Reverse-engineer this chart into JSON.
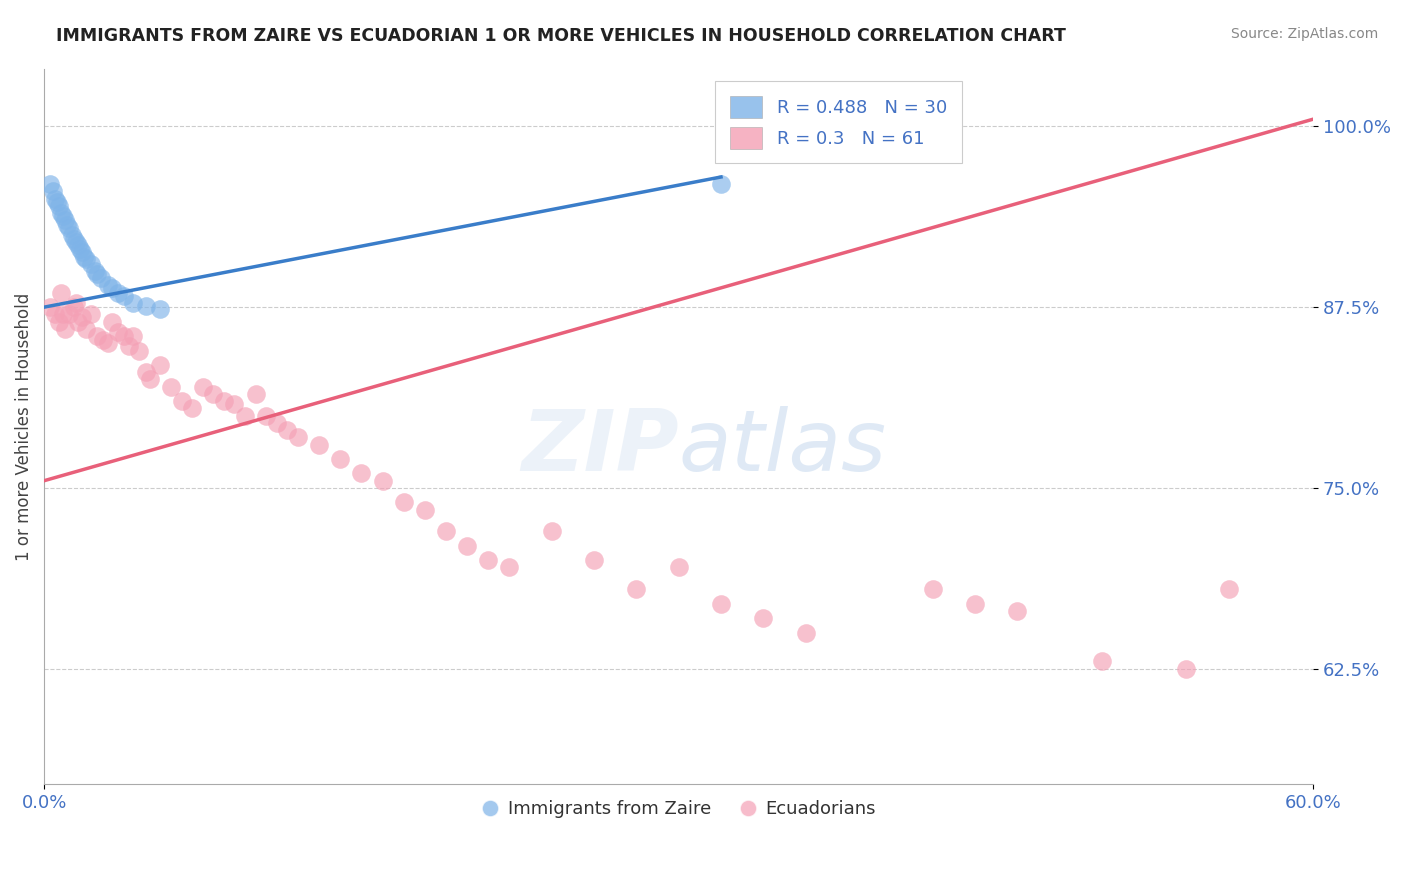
{
  "title": "IMMIGRANTS FROM ZAIRE VS ECUADORIAN 1 OR MORE VEHICLES IN HOUSEHOLD CORRELATION CHART",
  "source": "Source: ZipAtlas.com",
  "xlabel": "",
  "ylabel": "1 or more Vehicles in Household",
  "xmin": 0.0,
  "xmax": 0.6,
  "ymin": 0.545,
  "ymax": 1.04,
  "xticks": [
    0.0,
    0.6
  ],
  "xtick_labels": [
    "0.0%",
    "60.0%"
  ],
  "yticks": [
    0.625,
    0.75,
    0.875,
    1.0
  ],
  "ytick_labels": [
    "62.5%",
    "75.0%",
    "87.5%",
    "100.0%"
  ],
  "legend_labels": [
    "Immigrants from Zaire",
    "Ecuadorians"
  ],
  "r_blue": 0.488,
  "n_blue": 30,
  "r_pink": 0.3,
  "n_pink": 61,
  "blue_color": "#7EB3E8",
  "pink_color": "#F4A0B5",
  "blue_line_color": "#3A7DC9",
  "pink_line_color": "#E8607A",
  "title_color": "#222222",
  "tick_color": "#4472C4",
  "grid_color": "#CCCCCC",
  "blue_line_x0": 0.0,
  "blue_line_y0": 0.875,
  "blue_line_x1": 0.32,
  "blue_line_y1": 0.965,
  "pink_line_x0": 0.0,
  "pink_line_y0": 0.755,
  "pink_line_x1": 0.6,
  "pink_line_y1": 1.005,
  "blue_x": [
    0.003,
    0.004,
    0.005,
    0.006,
    0.007,
    0.008,
    0.009,
    0.01,
    0.011,
    0.012,
    0.013,
    0.014,
    0.015,
    0.016,
    0.017,
    0.018,
    0.019,
    0.02,
    0.022,
    0.024,
    0.025,
    0.027,
    0.03,
    0.032,
    0.035,
    0.038,
    0.042,
    0.048,
    0.055,
    0.32
  ],
  "blue_y": [
    0.96,
    0.955,
    0.95,
    0.948,
    0.945,
    0.94,
    0.938,
    0.935,
    0.932,
    0.93,
    0.925,
    0.922,
    0.92,
    0.918,
    0.915,
    0.913,
    0.91,
    0.908,
    0.905,
    0.9,
    0.898,
    0.895,
    0.89,
    0.888,
    0.885,
    0.883,
    0.878,
    0.876,
    0.874,
    0.96
  ],
  "pink_x": [
    0.003,
    0.005,
    0.007,
    0.008,
    0.009,
    0.01,
    0.012,
    0.014,
    0.015,
    0.016,
    0.018,
    0.02,
    0.022,
    0.025,
    0.028,
    0.03,
    0.032,
    0.035,
    0.038,
    0.04,
    0.042,
    0.045,
    0.048,
    0.05,
    0.055,
    0.06,
    0.065,
    0.07,
    0.075,
    0.08,
    0.085,
    0.09,
    0.095,
    0.1,
    0.105,
    0.11,
    0.115,
    0.12,
    0.13,
    0.14,
    0.15,
    0.16,
    0.17,
    0.18,
    0.19,
    0.2,
    0.21,
    0.22,
    0.24,
    0.26,
    0.28,
    0.3,
    0.32,
    0.34,
    0.36,
    0.42,
    0.44,
    0.46,
    0.5,
    0.54,
    0.56
  ],
  "pink_y": [
    0.875,
    0.87,
    0.865,
    0.885,
    0.87,
    0.86,
    0.87,
    0.875,
    0.878,
    0.865,
    0.868,
    0.86,
    0.87,
    0.855,
    0.852,
    0.85,
    0.865,
    0.858,
    0.855,
    0.848,
    0.855,
    0.845,
    0.83,
    0.825,
    0.835,
    0.82,
    0.81,
    0.805,
    0.82,
    0.815,
    0.81,
    0.808,
    0.8,
    0.815,
    0.8,
    0.795,
    0.79,
    0.785,
    0.78,
    0.77,
    0.76,
    0.755,
    0.74,
    0.735,
    0.72,
    0.71,
    0.7,
    0.695,
    0.72,
    0.7,
    0.68,
    0.695,
    0.67,
    0.66,
    0.65,
    0.68,
    0.67,
    0.665,
    0.63,
    0.625,
    0.68
  ]
}
